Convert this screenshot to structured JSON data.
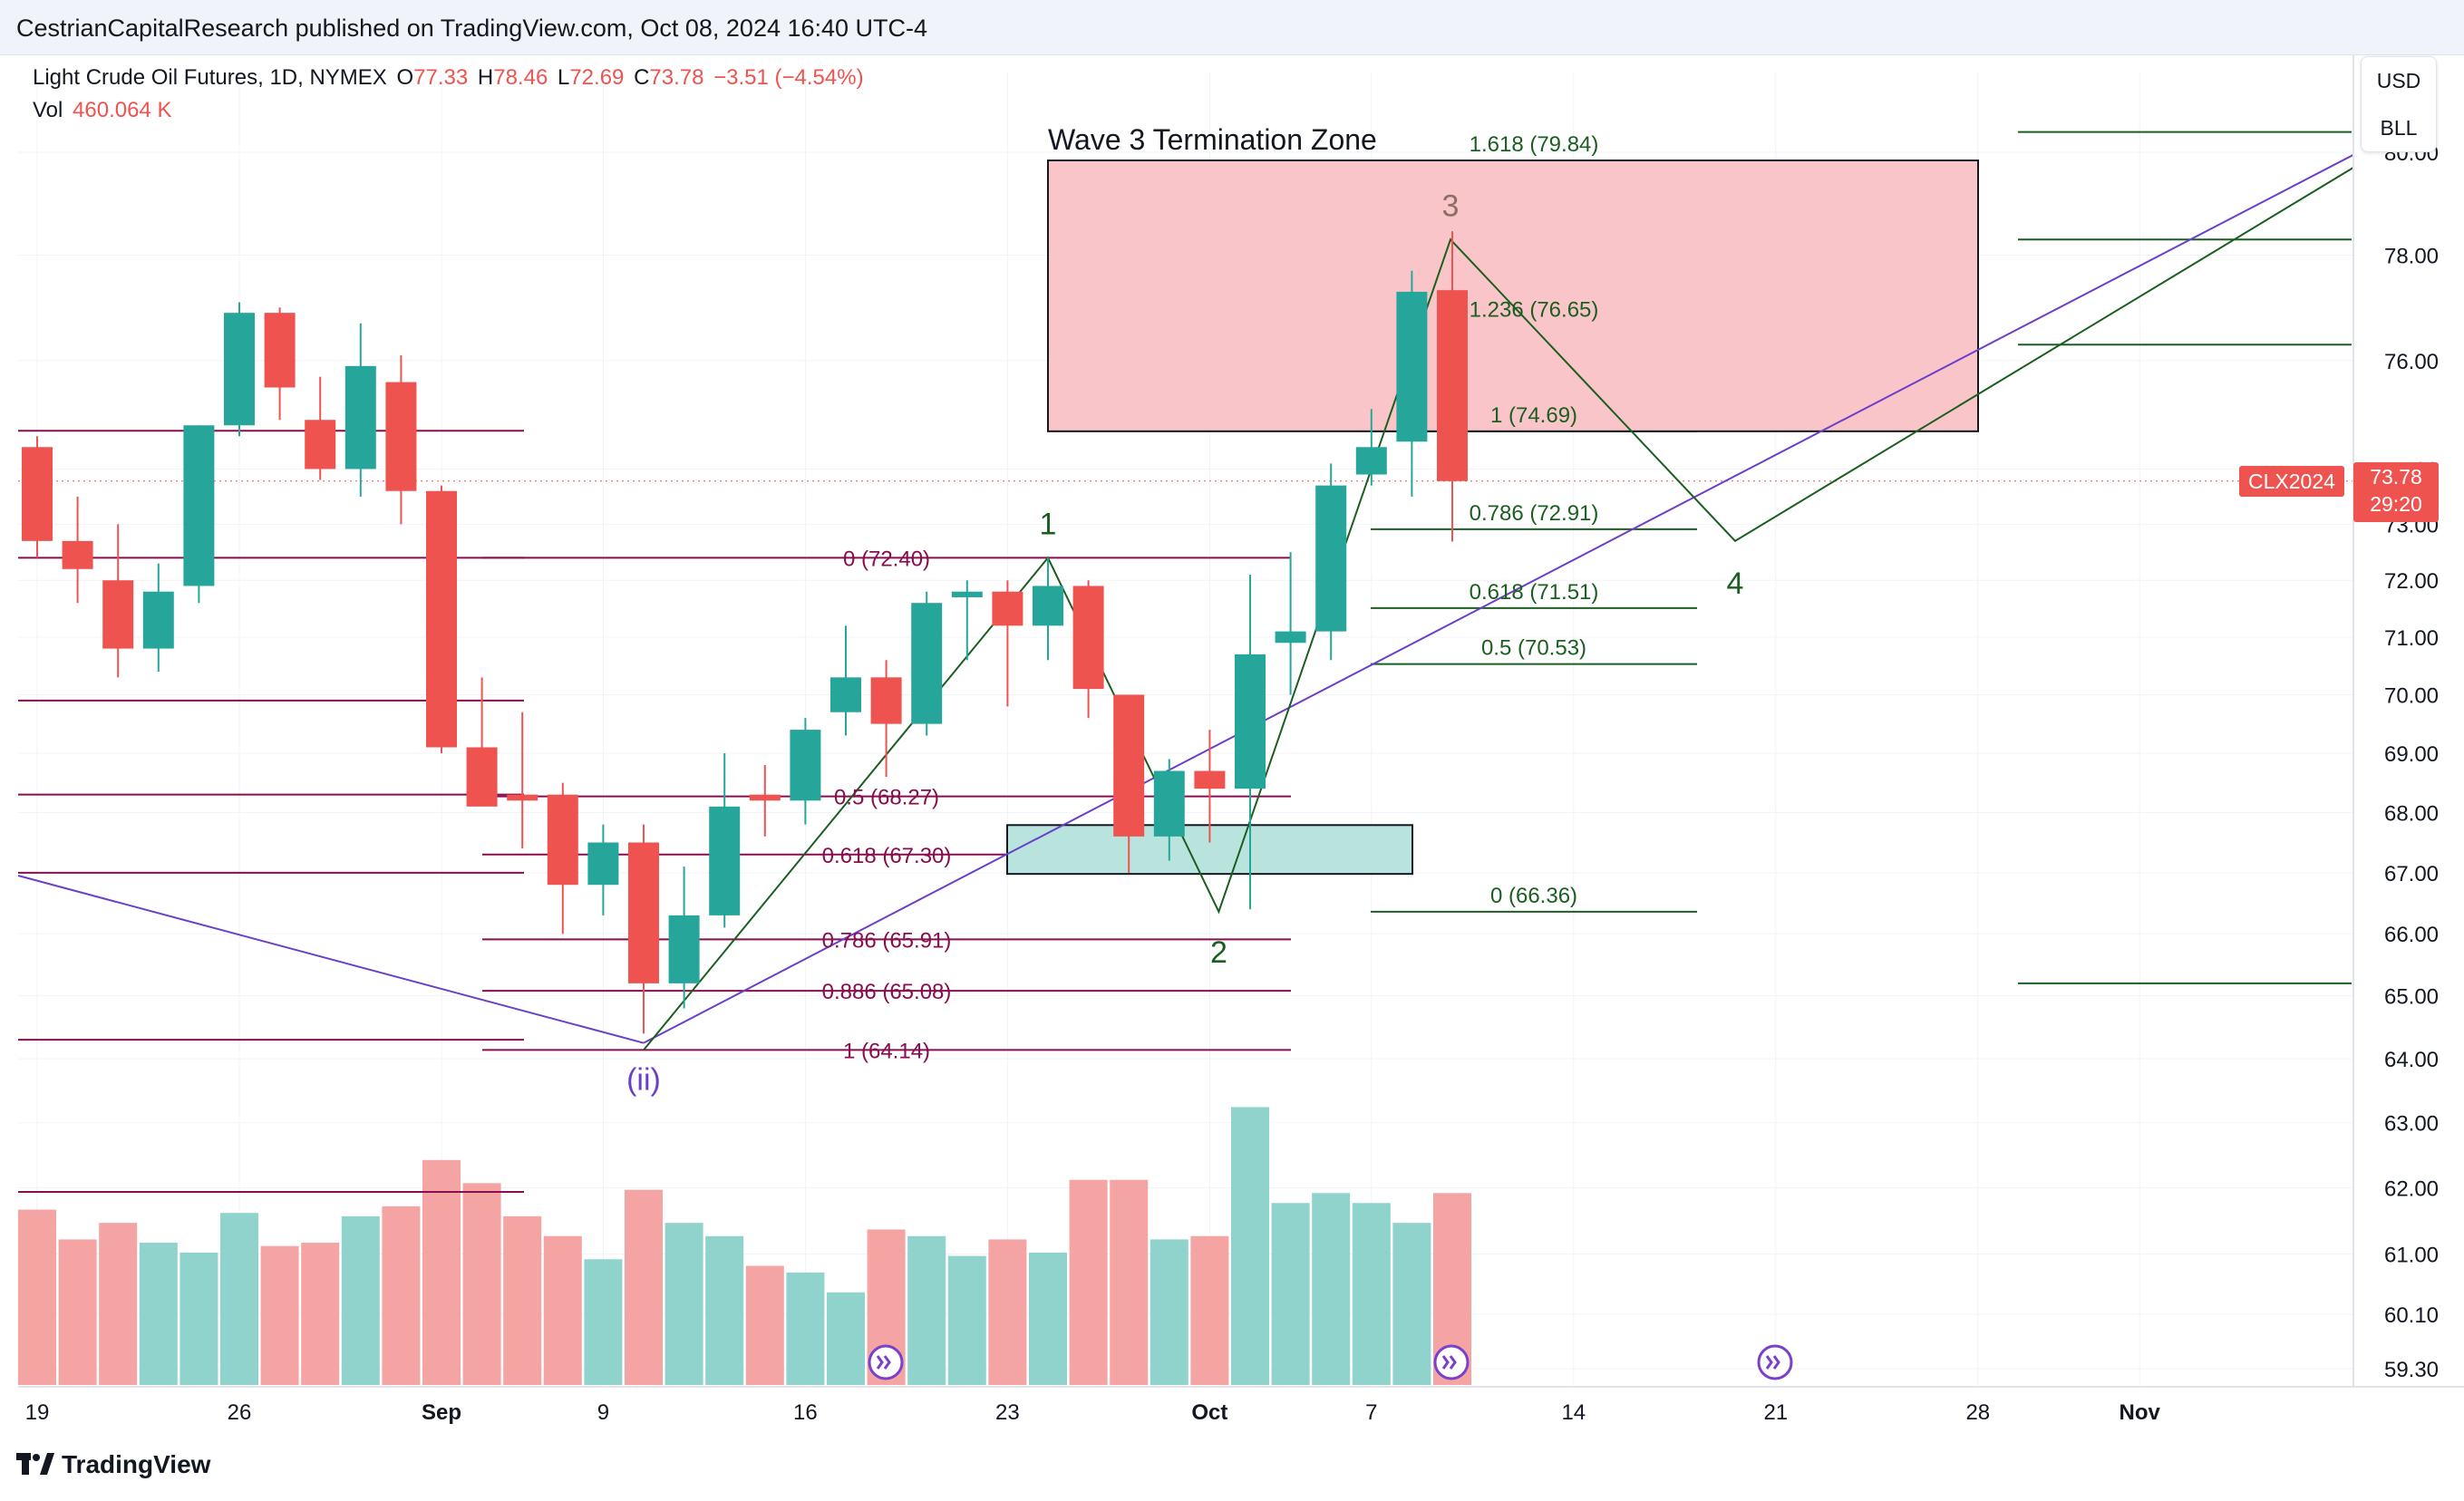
{
  "header": {
    "publisher_line": "CestrianCapitalResearch published on TradingView.com, Oct 08, 2024 16:40 UTC-4"
  },
  "legend": {
    "symbol": "Light Crude Oil Futures, 1D, NYMEX",
    "open_label": "O",
    "open": "77.33",
    "high_label": "H",
    "high": "78.46",
    "low_label": "L",
    "low": "72.69",
    "close_label": "C",
    "close": "73.78",
    "change": "−3.51 (−4.54%)",
    "vol_label": "Vol",
    "vol": "460.064 K"
  },
  "currency": {
    "primary": "USD",
    "unit": "BLL"
  },
  "price_badge": {
    "symbol": "CLX2024",
    "price": "73.78",
    "countdown": "29:20"
  },
  "footer": {
    "logo_text": "TradingView"
  },
  "colors": {
    "up": "#26a69a",
    "down": "#ef5350",
    "up_volume": "#8fd3cc",
    "down_volume": "#f5a4a4",
    "fib_maroon": "#880e4f",
    "fib_green": "#1b5e20",
    "wave_line": "#1b5e20",
    "channel_line": "#6a3fc9",
    "zone_fill": "#f9c5c9",
    "support_fill": "#b9e4dd"
  },
  "icons": [
    "flag-icon",
    "lightning-icon",
    "tradingview-logo-icon"
  ],
  "chart_data": {
    "type": "candlestick",
    "y_axis": {
      "min": 59.3,
      "max": 80.0,
      "scale": "log",
      "tick_labels": [
        "80.00",
        "78.00",
        "76.00",
        "74.00",
        "73.00",
        "72.00",
        "71.00",
        "70.00",
        "69.00",
        "68.00",
        "67.00",
        "66.00",
        "65.00",
        "64.00",
        "63.00",
        "62.00",
        "61.00",
        "60.10",
        "59.30"
      ],
      "tick_values": [
        80.0,
        78.0,
        76.0,
        74.0,
        73.0,
        72.0,
        71.0,
        70.0,
        69.0,
        68.0,
        67.0,
        66.0,
        65.0,
        64.0,
        63.0,
        62.0,
        61.0,
        60.1,
        59.3
      ]
    },
    "x_axis": {
      "tick_labels": [
        "19",
        "26",
        "Sep",
        "9",
        "16",
        "23",
        "Oct",
        "7",
        "14",
        "21",
        "28",
        "Nov"
      ],
      "tick_index": [
        0,
        5,
        10,
        14,
        19,
        24,
        29,
        33,
        38,
        43,
        48,
        52
      ]
    },
    "candles": [
      {
        "date": "Aug 19",
        "o": 74.4,
        "h": 74.6,
        "l": 72.4,
        "c": 72.7
      },
      {
        "date": "Aug 20",
        "o": 72.7,
        "h": 73.5,
        "l": 71.6,
        "c": 72.2
      },
      {
        "date": "Aug 21",
        "o": 72.0,
        "h": 73.0,
        "l": 70.3,
        "c": 70.8
      },
      {
        "date": "Aug 22",
        "o": 70.8,
        "h": 72.3,
        "l": 70.4,
        "c": 71.8
      },
      {
        "date": "Aug 23",
        "o": 71.9,
        "h": 74.8,
        "l": 71.6,
        "c": 74.8
      },
      {
        "date": "Aug 26",
        "o": 74.8,
        "h": 77.1,
        "l": 74.6,
        "c": 76.9
      },
      {
        "date": "Aug 27",
        "o": 76.9,
        "h": 77.0,
        "l": 74.9,
        "c": 75.5
      },
      {
        "date": "Aug 28",
        "o": 74.9,
        "h": 75.7,
        "l": 73.8,
        "c": 74.0
      },
      {
        "date": "Aug 29",
        "o": 74.0,
        "h": 76.7,
        "l": 73.5,
        "c": 75.9
      },
      {
        "date": "Aug 30",
        "o": 75.6,
        "h": 76.1,
        "l": 73.0,
        "c": 73.6
      },
      {
        "date": "Sep 3",
        "o": 73.6,
        "h": 73.7,
        "l": 69.0,
        "c": 69.1
      },
      {
        "date": "Sep 4",
        "o": 69.1,
        "h": 70.3,
        "l": 68.2,
        "c": 68.1
      },
      {
        "date": "Sep 5",
        "o": 68.3,
        "h": 69.7,
        "l": 67.4,
        "c": 68.2
      },
      {
        "date": "Sep 6",
        "o": 68.3,
        "h": 68.5,
        "l": 66.0,
        "c": 66.8
      },
      {
        "date": "Sep 9",
        "o": 66.8,
        "h": 67.8,
        "l": 66.3,
        "c": 67.5
      },
      {
        "date": "Sep 10",
        "o": 67.5,
        "h": 67.8,
        "l": 64.4,
        "c": 65.2
      },
      {
        "date": "Sep 11",
        "o": 65.2,
        "h": 67.1,
        "l": 64.8,
        "c": 66.3
      },
      {
        "date": "Sep 12",
        "o": 66.3,
        "h": 69.0,
        "l": 66.1,
        "c": 68.1
      },
      {
        "date": "Sep 13",
        "o": 68.3,
        "h": 68.8,
        "l": 67.6,
        "c": 68.2
      },
      {
        "date": "Sep 16",
        "o": 68.2,
        "h": 69.6,
        "l": 67.8,
        "c": 69.4
      },
      {
        "date": "Sep 17",
        "o": 69.7,
        "h": 71.2,
        "l": 69.3,
        "c": 70.3
      },
      {
        "date": "Sep 18",
        "o": 70.3,
        "h": 70.6,
        "l": 68.6,
        "c": 69.5
      },
      {
        "date": "Sep 19",
        "o": 69.5,
        "h": 71.8,
        "l": 69.3,
        "c": 71.6
      },
      {
        "date": "Sep 20",
        "o": 71.7,
        "h": 72.0,
        "l": 70.6,
        "c": 71.8
      },
      {
        "date": "Sep 23",
        "o": 71.8,
        "h": 72.0,
        "l": 69.8,
        "c": 71.2
      },
      {
        "date": "Sep 24",
        "o": 71.2,
        "h": 72.4,
        "l": 70.6,
        "c": 71.9
      },
      {
        "date": "Sep 25",
        "o": 71.9,
        "h": 72.0,
        "l": 69.6,
        "c": 70.1
      },
      {
        "date": "Sep 26",
        "o": 70.0,
        "h": 70.0,
        "l": 67.0,
        "c": 67.6
      },
      {
        "date": "Sep 27",
        "o": 67.6,
        "h": 68.9,
        "l": 67.2,
        "c": 68.7
      },
      {
        "date": "Sep 30",
        "o": 68.7,
        "h": 69.4,
        "l": 67.5,
        "c": 68.4
      },
      {
        "date": "Oct 1",
        "o": 68.4,
        "h": 72.1,
        "l": 66.4,
        "c": 70.7
      },
      {
        "date": "Oct 2",
        "o": 70.9,
        "h": 72.5,
        "l": 70.0,
        "c": 71.1
      },
      {
        "date": "Oct 3",
        "o": 71.1,
        "h": 74.1,
        "l": 70.6,
        "c": 73.7
      },
      {
        "date": "Oct 4",
        "o": 73.9,
        "h": 75.1,
        "l": 73.7,
        "c": 74.4
      },
      {
        "date": "Oct 7",
        "o": 74.5,
        "h": 77.7,
        "l": 73.5,
        "c": 77.3
      },
      {
        "date": "Oct 8",
        "o": 77.33,
        "h": 78.46,
        "l": 72.69,
        "c": 73.78
      }
    ],
    "volume_relative": [
      0.53,
      0.44,
      0.49,
      0.43,
      0.4,
      0.52,
      0.42,
      0.43,
      0.51,
      0.54,
      0.68,
      0.61,
      0.51,
      0.45,
      0.38,
      0.59,
      0.49,
      0.45,
      0.36,
      0.34,
      0.28,
      0.47,
      0.45,
      0.39,
      0.44,
      0.4,
      0.62,
      0.62,
      0.44,
      0.45,
      0.84,
      0.55,
      0.58,
      0.55,
      0.49,
      0.58
    ],
    "annotations": {
      "zone_title": "Wave 3 Termination Zone",
      "wave_labels": [
        "(ii)",
        "1",
        "2",
        "3",
        "4"
      ],
      "fib_maroon": [
        {
          "label": "0 (72.40)",
          "value": 72.4
        },
        {
          "label": "0.5 (68.27)",
          "value": 68.27
        },
        {
          "label": "0.618 (67.30)",
          "value": 67.3
        },
        {
          "label": "0.786 (65.91)",
          "value": 65.91
        },
        {
          "label": "0.886 (65.08)",
          "value": 65.08
        },
        {
          "label": "1 (64.14)",
          "value": 64.14
        }
      ],
      "fib_green": [
        {
          "label": "1.618 (79.84)",
          "value": 79.84
        },
        {
          "label": "1.236 (76.65)",
          "value": 76.65
        },
        {
          "label": "1 (74.69)",
          "value": 74.69
        },
        {
          "label": "0.786 (72.91)",
          "value": 72.91
        },
        {
          "label": "0.618 (71.51)",
          "value": 71.51
        },
        {
          "label": "0.5 (70.53)",
          "value": 70.53
        },
        {
          "label": "0 (66.36)",
          "value": 66.36
        }
      ],
      "wave3_zone": {
        "top": 79.84,
        "bottom": 74.69
      },
      "support_zone": {
        "top": 67.79,
        "bottom": 66.98
      },
      "left_levels": [
        74.7,
        72.4,
        69.9,
        68.3,
        67.0,
        64.3
      ],
      "right_levels": [
        80.4,
        78.3,
        76.3,
        65.2
      ]
    }
  }
}
